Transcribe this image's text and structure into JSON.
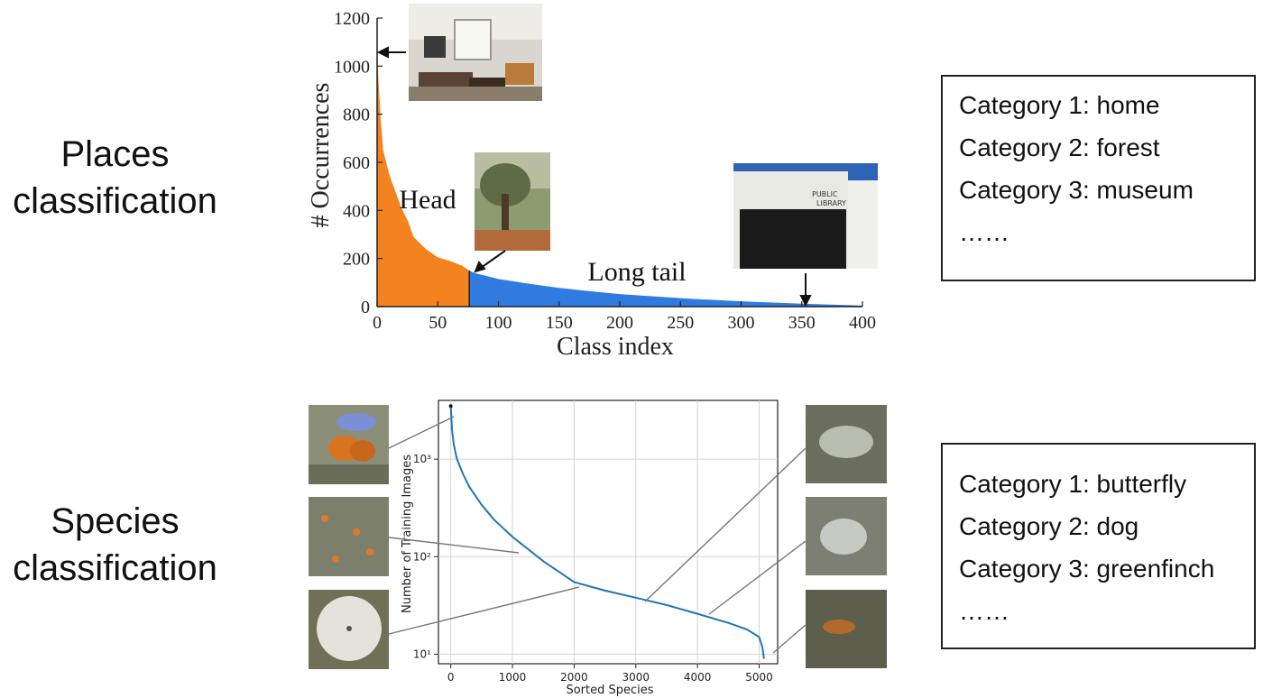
{
  "places": {
    "label_line1": "Places",
    "label_line2": "classification",
    "categories": [
      "Category 1: home",
      "Category 2: forest",
      "Category 3: museum",
      "……"
    ]
  },
  "species": {
    "label_line1": "Species",
    "label_line2": "classification",
    "categories": [
      "Category 1: butterfly",
      "Category 2: dog",
      "Category 3: greenfinch",
      "……"
    ]
  },
  "chart_data": [
    {
      "type": "area",
      "title": "",
      "xlabel": "Class index",
      "ylabel": "# Occurrences",
      "xlim": [
        0,
        400
      ],
      "ylim": [
        0,
        1200
      ],
      "xticks": [
        0,
        50,
        100,
        150,
        200,
        250,
        300,
        350,
        400
      ],
      "yticks": [
        0,
        200,
        400,
        600,
        800,
        1000,
        1200
      ],
      "x": [
        0,
        1,
        3,
        5,
        8,
        10,
        15,
        20,
        25,
        30,
        40,
        50,
        60,
        70,
        76,
        80,
        100,
        125,
        150,
        175,
        200,
        250,
        300,
        350,
        400
      ],
      "values": [
        1130,
        950,
        780,
        650,
        590,
        550,
        480,
        410,
        360,
        290,
        240,
        205,
        190,
        170,
        150,
        140,
        115,
        95,
        78,
        64,
        52,
        35,
        22,
        12,
        4
      ],
      "split_index": 76,
      "regions": [
        {
          "label": "Head",
          "color": "#f4821e"
        },
        {
          "label": "Long tail",
          "color": "#2f7be0"
        }
      ],
      "annotations": [
        "Head",
        "Long tail"
      ],
      "grid": false
    },
    {
      "type": "line",
      "title": "",
      "xlabel": "Sorted Species",
      "ylabel": "Number of Training Images",
      "yscale": "log",
      "xlim": [
        -200,
        5300
      ],
      "ylim": [
        8,
        4000
      ],
      "xticks": [
        0,
        1000,
        2000,
        3000,
        4000,
        5000
      ],
      "ytick_labels": [
        "10¹",
        "10²",
        "10³"
      ],
      "yticks": [
        10,
        100,
        1000
      ],
      "x": [
        0,
        20,
        50,
        100,
        200,
        300,
        500,
        700,
        1000,
        1500,
        2000,
        2500,
        3000,
        3500,
        4000,
        4500,
        4800,
        5000,
        5050,
        5080
      ],
      "values": [
        3500,
        2000,
        1400,
        1000,
        700,
        520,
        340,
        240,
        160,
        90,
        55,
        45,
        38,
        32,
        26,
        21,
        18,
        15,
        12,
        9
      ],
      "color": "#1f77b4",
      "grid": true
    }
  ]
}
